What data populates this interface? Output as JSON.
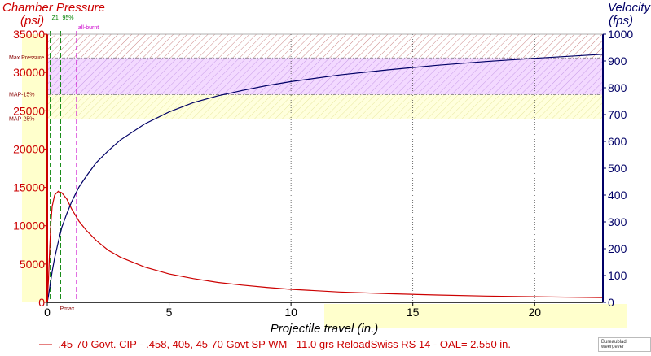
{
  "chart_data": {
    "type": "line",
    "title": "",
    "xlabel": "Projectile travel (in.)",
    "ylabel_left": "Chamber Pressure",
    "ylabel_left_unit": "(psi)",
    "ylabel_right": "Velocity",
    "ylabel_right_unit": "(fps)",
    "xlim": [
      0,
      22.8
    ],
    "ylim_left": [
      0,
      35000
    ],
    "ylim_right": [
      0,
      1000
    ],
    "x_ticks": [
      0,
      5,
      10,
      15,
      20
    ],
    "y_left_ticks": [
      0,
      5000,
      10000,
      15000,
      20000,
      25000,
      30000,
      35000
    ],
    "y_right_ticks": [
      0,
      100,
      200,
      300,
      400,
      500,
      600,
      700,
      800,
      900,
      1000
    ],
    "grid": true,
    "reference_lines": [
      {
        "label": "Max.Pressure",
        "value": 31900
      },
      {
        "label": "MAP-15%",
        "value": 27100
      },
      {
        "label": "MAP-25%",
        "value": 23900
      }
    ],
    "markers": [
      {
        "label": "Z1",
        "x": 0.12,
        "color": "#008000"
      },
      {
        "label": "95%",
        "x": 0.55,
        "color": "#008000"
      },
      {
        "label": "all-burnt",
        "x": 1.2,
        "color": "#cc00cc"
      },
      {
        "label": "Pmax",
        "x": 0.45,
        "color": "#cc0000"
      }
    ],
    "series": [
      {
        "name": ".45-70 Govt. CIP - .458, 405, 45-70 Govt SP WM - 11.0 grs ReloadSwiss RS 14 - OAL= 2.550 in.",
        "axis": "left",
        "color": "#cc0000",
        "x": [
          0,
          0.05,
          0.1,
          0.15,
          0.2,
          0.3,
          0.45,
          0.6,
          0.8,
          1.0,
          1.3,
          1.6,
          2.0,
          2.5,
          3,
          4,
          5,
          6,
          7,
          8,
          9,
          10,
          12,
          14,
          16,
          18,
          20,
          22.8
        ],
        "values": [
          0,
          3000,
          7000,
          10500,
          12500,
          14000,
          14500,
          14300,
          13500,
          12200,
          10600,
          9400,
          8100,
          6800,
          5900,
          4600,
          3700,
          3100,
          2600,
          2250,
          1950,
          1700,
          1350,
          1120,
          950,
          820,
          730,
          620
        ]
      },
      {
        "name": "Velocity",
        "axis": "right",
        "color": "#000066",
        "x": [
          0,
          0.05,
          0.1,
          0.15,
          0.2,
          0.3,
          0.45,
          0.6,
          0.8,
          1.0,
          1.3,
          1.6,
          2.0,
          2.5,
          3,
          4,
          5,
          6,
          7,
          8,
          9,
          10,
          12,
          14,
          16,
          18,
          20,
          22.8
        ],
        "values": [
          0,
          25,
          55,
          85,
          115,
          165,
          225,
          280,
          330,
          375,
          430,
          470,
          520,
          565,
          605,
          665,
          710,
          745,
          770,
          790,
          808,
          823,
          848,
          867,
          884,
          898,
          910,
          925
        ]
      }
    ],
    "legend_position": "bottom"
  },
  "watermark": "Bureaublad weergever"
}
